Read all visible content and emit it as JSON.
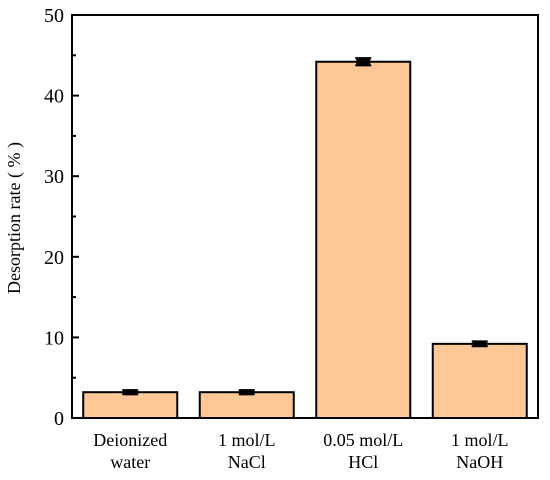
{
  "chart_data": {
    "type": "bar",
    "title": "",
    "xlabel": "",
    "ylabel": "Desorption rate ( % )",
    "ylim": [
      0,
      50
    ],
    "yticks": [
      0,
      10,
      20,
      30,
      40,
      50
    ],
    "grid": false,
    "categories": [
      [
        "Deionized",
        "water"
      ],
      [
        "1 mol/L",
        "NaCl"
      ],
      [
        "0.05 mol/L",
        "HCl"
      ],
      [
        "1 mol/L",
        "NaOH"
      ]
    ],
    "values": [
      3.2,
      3.2,
      44.2,
      9.2
    ],
    "errors": [
      0.25,
      0.25,
      0.45,
      0.3
    ],
    "colors": {
      "bar_fill": "#FDC896",
      "bar_stroke": "#000000",
      "axis": "#000000"
    }
  }
}
